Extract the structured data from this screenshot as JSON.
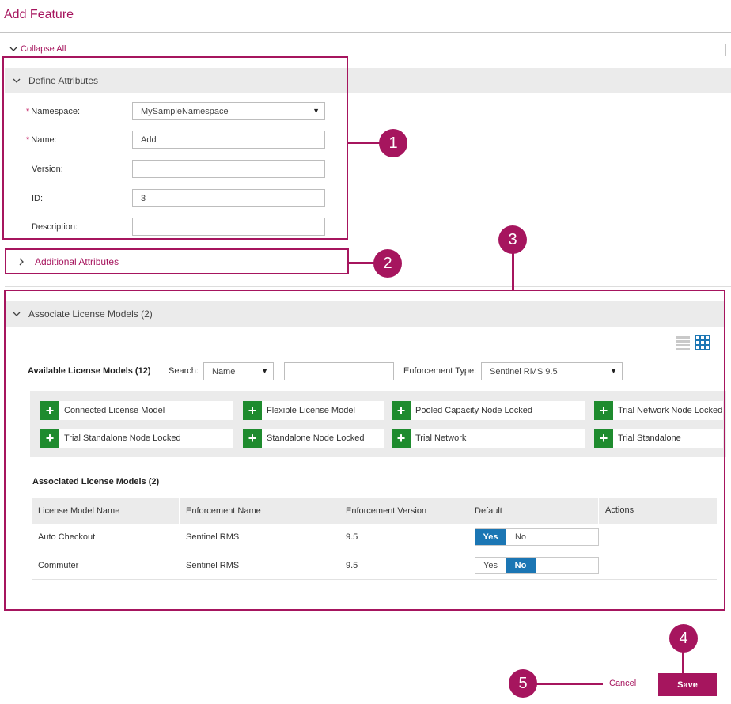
{
  "page": {
    "title": "Add Feature",
    "collapse_all": "Collapse All"
  },
  "define_attributes": {
    "header": "Define Attributes",
    "fields": [
      {
        "label": "Namespace:",
        "required": true,
        "value": "MySampleNamespace",
        "type": "select"
      },
      {
        "label": "Name:",
        "required": true,
        "value": "Add",
        "type": "text"
      },
      {
        "label": "Version:",
        "required": false,
        "value": "",
        "type": "text"
      },
      {
        "label": "ID:",
        "required": false,
        "value": "3",
        "type": "text"
      },
      {
        "label": "Description:",
        "required": false,
        "value": "",
        "type": "text"
      }
    ]
  },
  "additional_attributes": {
    "header": "Additional Attributes"
  },
  "associate_license_models": {
    "header": "Associate License Models (2)",
    "available_label": "Available License Models (12)",
    "search_label": "Search:",
    "search_by": "Name",
    "search_value": "",
    "enforcement_label": "Enforcement Type:",
    "enforcement_value": "Sentinel RMS 9.5",
    "available_models": [
      "Connected License Model",
      "Flexible License Model",
      "Pooled Capacity Node Locked",
      "Trial Network Node Locked",
      "Trial Standalone Node Locked",
      "Standalone Node Locked",
      "Trial Network",
      "Trial Standalone"
    ],
    "associated_label": "Associated License Models (2)",
    "table": {
      "columns": [
        "License Model Name",
        "Enforcement Name",
        "Enforcement Version",
        "Default",
        "Actions"
      ],
      "rows": [
        {
          "name": "Auto Checkout",
          "enforcement": "Sentinel RMS",
          "version": "9.5",
          "default": "Yes"
        },
        {
          "name": "Commuter",
          "enforcement": "Sentinel RMS",
          "version": "9.5",
          "default": "No"
        }
      ],
      "toggle_yes": "Yes",
      "toggle_no": "No"
    }
  },
  "callouts": [
    "1",
    "2",
    "3",
    "4",
    "5"
  ],
  "footer": {
    "cancel": "Cancel",
    "save": "Save"
  },
  "colors": {
    "accent": "#a6155e",
    "add_green": "#1e8b2e",
    "toggle_blue": "#1b76b4",
    "section_gray": "#ebebeb"
  },
  "icons": [
    "chevron-down-icon",
    "chevron-right-icon",
    "list-view-icon",
    "grid-view-icon",
    "plus-icon",
    "dropdown-caret-icon"
  ]
}
